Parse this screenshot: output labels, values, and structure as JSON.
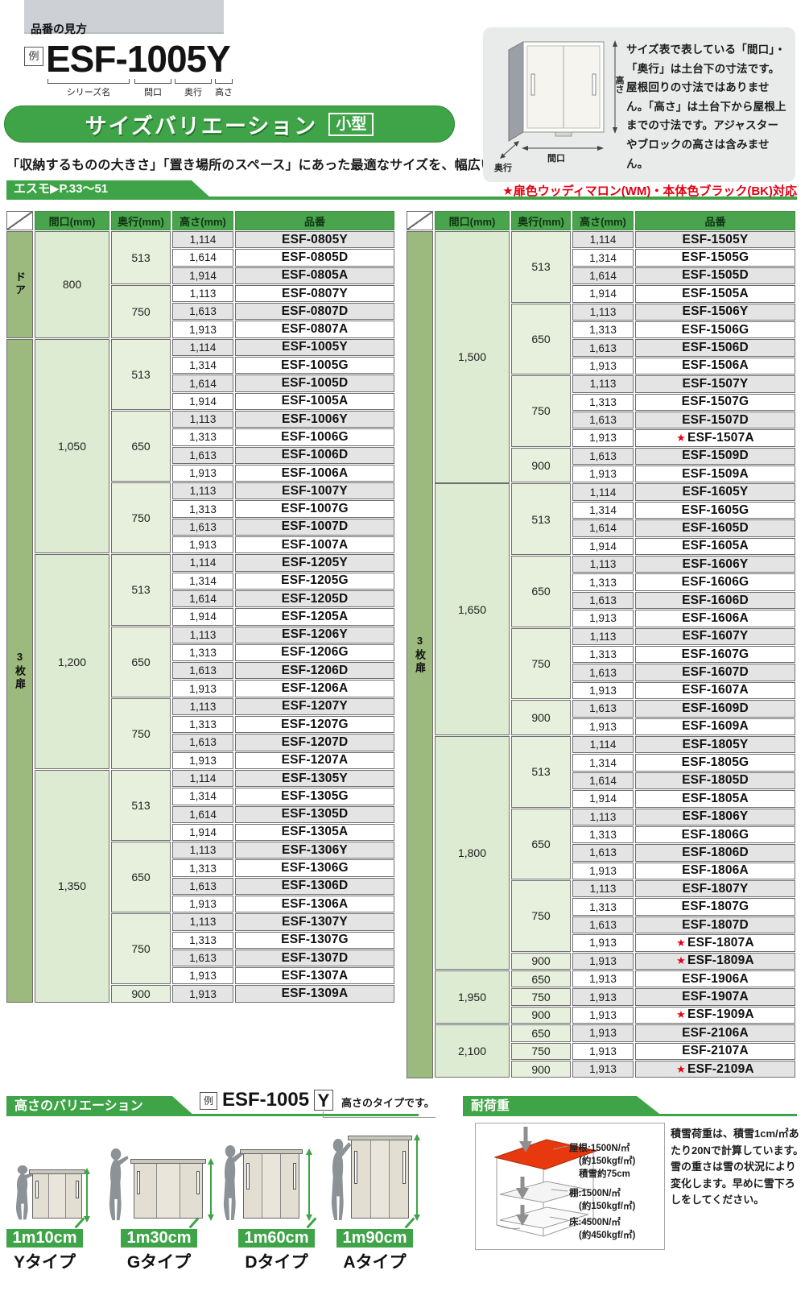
{
  "colors": {
    "accent_green": "#3ea447",
    "table_header_green": "#4aa34d",
    "door_label_green": "#9cba7d",
    "width_cell_green": "#dcebd1",
    "depth_cell_green": "#e7f0dc",
    "stripe_gray": "#e4e4e4",
    "note_red": "#e60012",
    "roof_red": "#e8380d"
  },
  "header": {
    "hinban_guide": "品番の見方",
    "example_badge": "例",
    "example_code": "ESF-1005Y",
    "part_labels": {
      "series": "シリーズ名",
      "width": "間口",
      "depth": "奥行",
      "height": "高さ"
    },
    "banner_title": "サイズバリエーション",
    "banner_badge": "小型",
    "intro": "「収納するものの大きさ」「置き場所のスペース」にあった最適なサイズを、幅広いバリエーションからお選びください。",
    "series_tab": "エスモ▶P.33〜51",
    "color_note": "★扉色ウッディマロン(WM)・本体色ブラック(BK)対応"
  },
  "info_box": {
    "text": "サイズ表で表している「間口」・「奥行」は土台下の寸法です。屋根回りの寸法ではありません。「高さ」は土台下から屋根上までの寸法です。アジャスターやブロックの高さは含みません。",
    "labels": {
      "height": "高さ",
      "width": "間口",
      "depth": "奥行"
    }
  },
  "table_columns": [
    "間口(mm)",
    "奥行(mm)",
    "高さ(mm)",
    "品番"
  ],
  "left_table": {
    "sections": [
      {
        "label": "ドア",
        "groups": [
          {
            "width": "800",
            "depths": [
              {
                "depth": "513",
                "rows": [
                  [
                    "1,114",
                    "ESF-0805Y"
                  ],
                  [
                    "1,614",
                    "ESF-0805D"
                  ],
                  [
                    "1,914",
                    "ESF-0805A"
                  ]
                ]
              },
              {
                "depth": "750",
                "rows": [
                  [
                    "1,113",
                    "ESF-0807Y"
                  ],
                  [
                    "1,613",
                    "ESF-0807D"
                  ],
                  [
                    "1,913",
                    "ESF-0807A"
                  ]
                ]
              }
            ]
          }
        ]
      },
      {
        "label": "3枚扉",
        "groups": [
          {
            "width": "1,050",
            "depths": [
              {
                "depth": "513",
                "rows": [
                  [
                    "1,114",
                    "ESF-1005Y"
                  ],
                  [
                    "1,314",
                    "ESF-1005G"
                  ],
                  [
                    "1,614",
                    "ESF-1005D"
                  ],
                  [
                    "1,914",
                    "ESF-1005A"
                  ]
                ]
              },
              {
                "depth": "650",
                "rows": [
                  [
                    "1,113",
                    "ESF-1006Y"
                  ],
                  [
                    "1,313",
                    "ESF-1006G"
                  ],
                  [
                    "1,613",
                    "ESF-1006D"
                  ],
                  [
                    "1,913",
                    "ESF-1006A"
                  ]
                ]
              },
              {
                "depth": "750",
                "rows": [
                  [
                    "1,113",
                    "ESF-1007Y"
                  ],
                  [
                    "1,313",
                    "ESF-1007G"
                  ],
                  [
                    "1,613",
                    "ESF-1007D"
                  ],
                  [
                    "1,913",
                    "ESF-1007A"
                  ]
                ]
              }
            ]
          },
          {
            "width": "1,200",
            "depths": [
              {
                "depth": "513",
                "rows": [
                  [
                    "1,114",
                    "ESF-1205Y"
                  ],
                  [
                    "1,314",
                    "ESF-1205G"
                  ],
                  [
                    "1,614",
                    "ESF-1205D"
                  ],
                  [
                    "1,914",
                    "ESF-1205A"
                  ]
                ]
              },
              {
                "depth": "650",
                "rows": [
                  [
                    "1,113",
                    "ESF-1206Y"
                  ],
                  [
                    "1,313",
                    "ESF-1206G"
                  ],
                  [
                    "1,613",
                    "ESF-1206D"
                  ],
                  [
                    "1,913",
                    "ESF-1206A"
                  ]
                ]
              },
              {
                "depth": "750",
                "rows": [
                  [
                    "1,113",
                    "ESF-1207Y"
                  ],
                  [
                    "1,313",
                    "ESF-1207G"
                  ],
                  [
                    "1,613",
                    "ESF-1207D"
                  ],
                  [
                    "1,913",
                    "ESF-1207A"
                  ]
                ]
              }
            ]
          },
          {
            "width": "1,350",
            "depths": [
              {
                "depth": "513",
                "rows": [
                  [
                    "1,114",
                    "ESF-1305Y"
                  ],
                  [
                    "1,314",
                    "ESF-1305G"
                  ],
                  [
                    "1,614",
                    "ESF-1305D"
                  ],
                  [
                    "1,914",
                    "ESF-1305A"
                  ]
                ]
              },
              {
                "depth": "650",
                "rows": [
                  [
                    "1,113",
                    "ESF-1306Y"
                  ],
                  [
                    "1,313",
                    "ESF-1306G"
                  ],
                  [
                    "1,613",
                    "ESF-1306D"
                  ],
                  [
                    "1,913",
                    "ESF-1306A"
                  ]
                ]
              },
              {
                "depth": "750",
                "rows": [
                  [
                    "1,113",
                    "ESF-1307Y"
                  ],
                  [
                    "1,313",
                    "ESF-1307G"
                  ],
                  [
                    "1,613",
                    "ESF-1307D"
                  ],
                  [
                    "1,913",
                    "ESF-1307A"
                  ]
                ]
              },
              {
                "depth": "900",
                "rows": [
                  [
                    "1,913",
                    "ESF-1309A"
                  ]
                ]
              }
            ]
          }
        ]
      }
    ]
  },
  "right_table": {
    "sections": [
      {
        "label": "3枚扉",
        "groups": [
          {
            "width": "1,500",
            "depths": [
              {
                "depth": "513",
                "rows": [
                  [
                    "1,114",
                    "ESF-1505Y"
                  ],
                  [
                    "1,314",
                    "ESF-1505G"
                  ],
                  [
                    "1,614",
                    "ESF-1505D"
                  ],
                  [
                    "1,914",
                    "ESF-1505A"
                  ]
                ]
              },
              {
                "depth": "650",
                "rows": [
                  [
                    "1,113",
                    "ESF-1506Y"
                  ],
                  [
                    "1,313",
                    "ESF-1506G"
                  ],
                  [
                    "1,613",
                    "ESF-1506D"
                  ],
                  [
                    "1,913",
                    "ESF-1506A"
                  ]
                ]
              },
              {
                "depth": "750",
                "rows": [
                  [
                    "1,113",
                    "ESF-1507Y"
                  ],
                  [
                    "1,313",
                    "ESF-1507G"
                  ],
                  [
                    "1,613",
                    "ESF-1507D"
                  ],
                  [
                    "1,913",
                    "ESF-1507A",
                    "star"
                  ]
                ]
              },
              {
                "depth": "900",
                "rows": [
                  [
                    "1,613",
                    "ESF-1509D"
                  ],
                  [
                    "1,913",
                    "ESF-1509A"
                  ]
                ]
              }
            ]
          },
          {
            "width": "1,650",
            "depths": [
              {
                "depth": "513",
                "rows": [
                  [
                    "1,114",
                    "ESF-1605Y"
                  ],
                  [
                    "1,314",
                    "ESF-1605G"
                  ],
                  [
                    "1,614",
                    "ESF-1605D"
                  ],
                  [
                    "1,914",
                    "ESF-1605A"
                  ]
                ]
              },
              {
                "depth": "650",
                "rows": [
                  [
                    "1,113",
                    "ESF-1606Y"
                  ],
                  [
                    "1,313",
                    "ESF-1606G"
                  ],
                  [
                    "1,613",
                    "ESF-1606D"
                  ],
                  [
                    "1,913",
                    "ESF-1606A"
                  ]
                ]
              },
              {
                "depth": "750",
                "rows": [
                  [
                    "1,113",
                    "ESF-1607Y"
                  ],
                  [
                    "1,313",
                    "ESF-1607G"
                  ],
                  [
                    "1,613",
                    "ESF-1607D"
                  ],
                  [
                    "1,913",
                    "ESF-1607A"
                  ]
                ]
              },
              {
                "depth": "900",
                "rows": [
                  [
                    "1,613",
                    "ESF-1609D"
                  ],
                  [
                    "1,913",
                    "ESF-1609A"
                  ]
                ]
              }
            ]
          },
          {
            "width": "1,800",
            "depths": [
              {
                "depth": "513",
                "rows": [
                  [
                    "1,114",
                    "ESF-1805Y"
                  ],
                  [
                    "1,314",
                    "ESF-1805G"
                  ],
                  [
                    "1,614",
                    "ESF-1805D"
                  ],
                  [
                    "1,914",
                    "ESF-1805A"
                  ]
                ]
              },
              {
                "depth": "650",
                "rows": [
                  [
                    "1,113",
                    "ESF-1806Y"
                  ],
                  [
                    "1,313",
                    "ESF-1806G"
                  ],
                  [
                    "1,613",
                    "ESF-1806D"
                  ],
                  [
                    "1,913",
                    "ESF-1806A"
                  ]
                ]
              },
              {
                "depth": "750",
                "rows": [
                  [
                    "1,113",
                    "ESF-1807Y"
                  ],
                  [
                    "1,313",
                    "ESF-1807G"
                  ],
                  [
                    "1,613",
                    "ESF-1807D"
                  ],
                  [
                    "1,913",
                    "ESF-1807A",
                    "star"
                  ]
                ]
              },
              {
                "depth": "900",
                "rows": [
                  [
                    "1,913",
                    "ESF-1809A",
                    "star"
                  ]
                ]
              }
            ]
          },
          {
            "width": "1,950",
            "depths": [
              {
                "depth": "650",
                "rows": [
                  [
                    "1,913",
                    "ESF-1906A"
                  ]
                ]
              },
              {
                "depth": "750",
                "rows": [
                  [
                    "1,913",
                    "ESF-1907A"
                  ]
                ]
              },
              {
                "depth": "900",
                "rows": [
                  [
                    "1,913",
                    "ESF-1909A",
                    "star"
                  ]
                ]
              }
            ]
          },
          {
            "width": "2,100",
            "depths": [
              {
                "depth": "650",
                "rows": [
                  [
                    "1,913",
                    "ESF-2106A"
                  ]
                ]
              },
              {
                "depth": "750",
                "rows": [
                  [
                    "1,913",
                    "ESF-2107A"
                  ]
                ]
              },
              {
                "depth": "900",
                "rows": [
                  [
                    "1,913",
                    "ESF-2109A",
                    "star"
                  ]
                ]
              }
            ]
          }
        ]
      }
    ]
  },
  "height_variation": {
    "banner": "高さのバリエーション",
    "example_badge": "例",
    "example_prefix": "ESF-1005",
    "example_suffix": "Y",
    "example_note": "高さのタイプです。",
    "items": [
      {
        "height": "1m10cm",
        "type": "Yタイプ"
      },
      {
        "height": "1m30cm",
        "type": "Gタイプ"
      },
      {
        "height": "1m60cm",
        "type": "Dタイプ"
      },
      {
        "height": "1m90cm",
        "type": "Aタイプ"
      }
    ]
  },
  "load_section": {
    "banner": "耐荷重",
    "roof_label": "屋根:1500N/㎡",
    "roof_sub": "(約150kgf/㎡)",
    "roof_snow": "積雪約75cm",
    "shelf_label": "棚:1500N/㎡",
    "shelf_sub": "(約150kgf/㎡)",
    "floor_label": "床:4500N/㎡",
    "floor_sub": "(約450kgf/㎡)",
    "note": "積雪荷重は、積雪1cm/㎡あたり20Nで計算しています。雪の重さは雪の状況により変化します。早めに雪下ろしをしてください。"
  }
}
